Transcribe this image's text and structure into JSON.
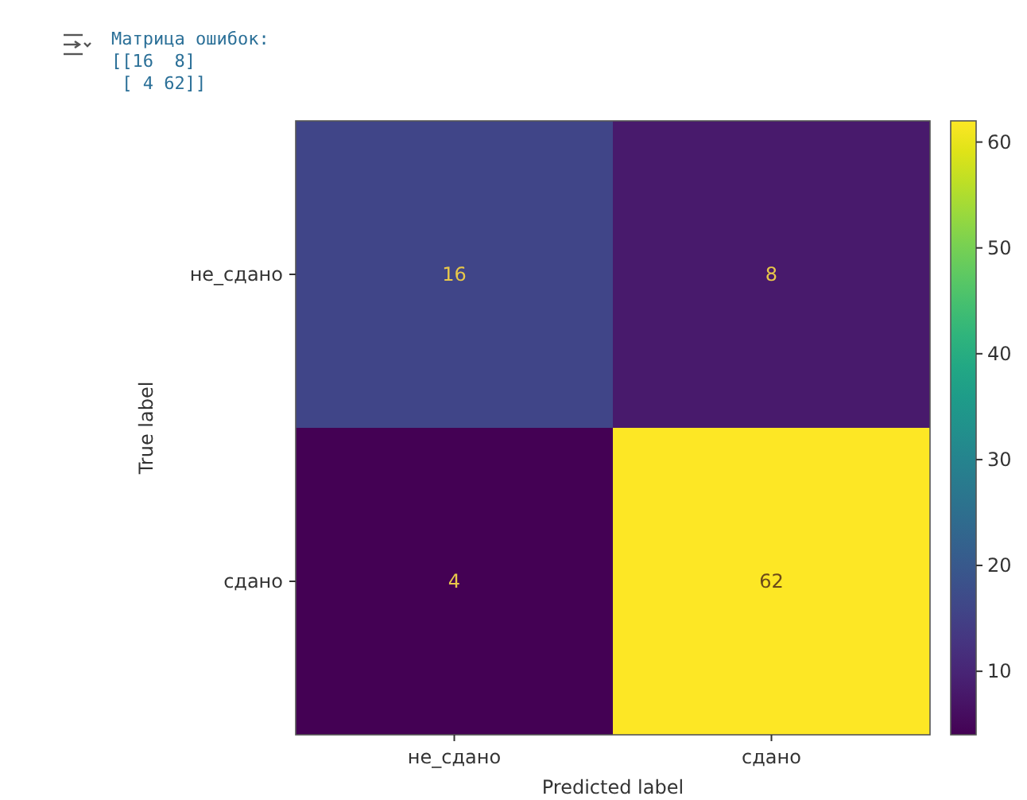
{
  "chart_data": {
    "type": "heatmap",
    "xlabel": "Predicted label",
    "ylabel": "True label",
    "categories": [
      "не_сдано",
      "сдано"
    ],
    "y_categories": [
      "не_сдано",
      "сдано"
    ],
    "cells": [
      [
        16,
        8
      ],
      [
        4,
        62
      ]
    ],
    "data_labels": true,
    "clim": [
      4,
      62
    ],
    "cticks": [
      10,
      20,
      30,
      40,
      50,
      60
    ],
    "annotations": [
      "Матрица ошибок:",
      "[[16  8]",
      " [ 4 62]]"
    ]
  }
}
